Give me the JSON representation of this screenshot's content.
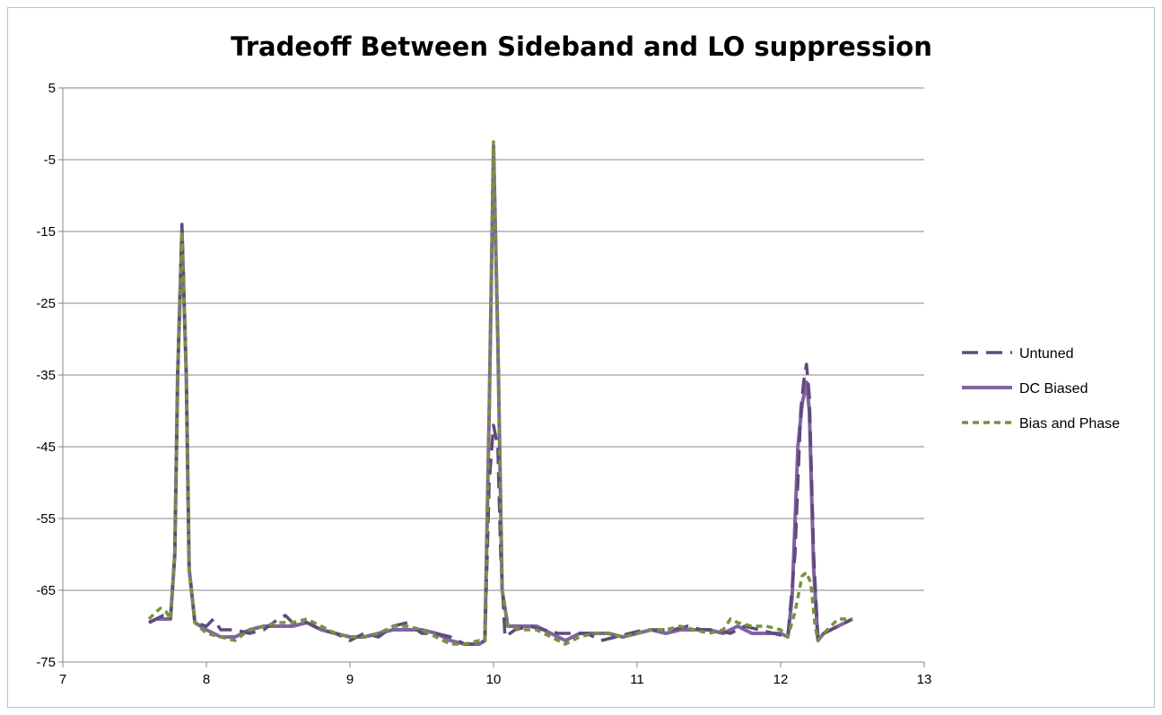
{
  "chart_data": {
    "type": "line",
    "title": "Tradeoff Between Sideband and LO suppression",
    "xlabel": "",
    "ylabel": "",
    "xlim": [
      7,
      13
    ],
    "ylim": [
      -75,
      5
    ],
    "x_ticks": [
      "7",
      "8",
      "9",
      "10",
      "11",
      "12",
      "13"
    ],
    "y_ticks": [
      "5",
      "-5",
      "-15",
      "-25",
      "-35",
      "-45",
      "-55",
      "-65",
      "-75"
    ],
    "grid": "horizontal",
    "legend_position": "right",
    "series": [
      {
        "name": "Untuned",
        "color": "#604a7b",
        "style": "long-dash",
        "points": [
          [
            7.6,
            -69.5
          ],
          [
            7.65,
            -69
          ],
          [
            7.7,
            -68.5
          ],
          [
            7.75,
            -69
          ],
          [
            7.78,
            -60
          ],
          [
            7.8,
            -35
          ],
          [
            7.83,
            -14
          ],
          [
            7.86,
            -35
          ],
          [
            7.88,
            -62
          ],
          [
            7.92,
            -69.5
          ],
          [
            8.0,
            -70
          ],
          [
            8.05,
            -69
          ],
          [
            8.1,
            -70.5
          ],
          [
            8.2,
            -70.5
          ],
          [
            8.3,
            -71
          ],
          [
            8.4,
            -70.5
          ],
          [
            8.5,
            -69
          ],
          [
            8.55,
            -68.5
          ],
          [
            8.6,
            -69.5
          ],
          [
            8.7,
            -69.5
          ],
          [
            8.8,
            -70.5
          ],
          [
            8.9,
            -71
          ],
          [
            9.0,
            -72
          ],
          [
            9.1,
            -71
          ],
          [
            9.2,
            -71.5
          ],
          [
            9.3,
            -70
          ],
          [
            9.4,
            -69.5
          ],
          [
            9.5,
            -71
          ],
          [
            9.6,
            -71
          ],
          [
            9.7,
            -71.5
          ],
          [
            9.8,
            -72.5
          ],
          [
            9.9,
            -72.5
          ],
          [
            9.94,
            -72
          ],
          [
            9.97,
            -50
          ],
          [
            10.0,
            -42
          ],
          [
            10.03,
            -45
          ],
          [
            10.05,
            -60
          ],
          [
            10.08,
            -71.5
          ],
          [
            10.15,
            -70.5
          ],
          [
            10.25,
            -70
          ],
          [
            10.35,
            -70.5
          ],
          [
            10.45,
            -71
          ],
          [
            10.55,
            -71
          ],
          [
            10.65,
            -71
          ],
          [
            10.75,
            -72
          ],
          [
            10.85,
            -71.5
          ],
          [
            10.95,
            -71
          ],
          [
            11.05,
            -70.5
          ],
          [
            11.15,
            -70.5
          ],
          [
            11.25,
            -70.5
          ],
          [
            11.35,
            -70
          ],
          [
            11.45,
            -70.5
          ],
          [
            11.55,
            -70.5
          ],
          [
            11.65,
            -71
          ],
          [
            11.75,
            -70
          ],
          [
            11.85,
            -70.5
          ],
          [
            11.95,
            -71
          ],
          [
            12.05,
            -71.5
          ],
          [
            12.1,
            -60
          ],
          [
            12.14,
            -40
          ],
          [
            12.16,
            -36
          ],
          [
            12.18,
            -33.5
          ],
          [
            12.2,
            -38
          ],
          [
            12.23,
            -60
          ],
          [
            12.26,
            -72
          ],
          [
            12.3,
            -71
          ],
          [
            12.4,
            -70
          ],
          [
            12.5,
            -69
          ]
        ]
      },
      {
        "name": "DC Biased",
        "color": "#8064a2",
        "style": "solid",
        "points": [
          [
            7.6,
            -69.5
          ],
          [
            7.65,
            -69
          ],
          [
            7.7,
            -69
          ],
          [
            7.75,
            -69
          ],
          [
            7.78,
            -60
          ],
          [
            7.8,
            -35
          ],
          [
            7.83,
            -15
          ],
          [
            7.86,
            -35
          ],
          [
            7.88,
            -62
          ],
          [
            7.92,
            -69.5
          ],
          [
            8.0,
            -70.5
          ],
          [
            8.1,
            -71.5
          ],
          [
            8.2,
            -71.5
          ],
          [
            8.3,
            -70.5
          ],
          [
            8.4,
            -70
          ],
          [
            8.5,
            -70
          ],
          [
            8.6,
            -70
          ],
          [
            8.7,
            -69.5
          ],
          [
            8.8,
            -70.5
          ],
          [
            8.9,
            -71
          ],
          [
            9.0,
            -71.5
          ],
          [
            9.1,
            -71.5
          ],
          [
            9.2,
            -71
          ],
          [
            9.3,
            -70.5
          ],
          [
            9.4,
            -70.5
          ],
          [
            9.5,
            -70.5
          ],
          [
            9.6,
            -71
          ],
          [
            9.7,
            -72
          ],
          [
            9.8,
            -72.5
          ],
          [
            9.9,
            -72.5
          ],
          [
            9.94,
            -72
          ],
          [
            9.97,
            -40
          ],
          [
            10.0,
            -3
          ],
          [
            10.03,
            -30
          ],
          [
            10.06,
            -65
          ],
          [
            10.1,
            -70
          ],
          [
            10.2,
            -70
          ],
          [
            10.3,
            -70
          ],
          [
            10.4,
            -71
          ],
          [
            10.5,
            -72
          ],
          [
            10.6,
            -71
          ],
          [
            10.7,
            -71
          ],
          [
            10.8,
            -71
          ],
          [
            10.9,
            -71.5
          ],
          [
            11.0,
            -71
          ],
          [
            11.1,
            -70.5
          ],
          [
            11.2,
            -71
          ],
          [
            11.3,
            -70.5
          ],
          [
            11.4,
            -70.5
          ],
          [
            11.5,
            -70.5
          ],
          [
            11.6,
            -71
          ],
          [
            11.7,
            -70
          ],
          [
            11.8,
            -71
          ],
          [
            11.9,
            -71
          ],
          [
            12.0,
            -71
          ],
          [
            12.05,
            -71.5
          ],
          [
            12.08,
            -66
          ],
          [
            12.12,
            -45
          ],
          [
            12.15,
            -39
          ],
          [
            12.18,
            -36
          ],
          [
            12.2,
            -40
          ],
          [
            12.23,
            -62
          ],
          [
            12.26,
            -72
          ],
          [
            12.3,
            -71
          ],
          [
            12.4,
            -70
          ],
          [
            12.5,
            -69
          ]
        ]
      },
      {
        "name": "Bias and Phase",
        "color": "#77933c",
        "style": "short-dash",
        "points": [
          [
            7.6,
            -69
          ],
          [
            7.65,
            -68
          ],
          [
            7.68,
            -67.5
          ],
          [
            7.72,
            -68
          ],
          [
            7.75,
            -69
          ],
          [
            7.78,
            -60
          ],
          [
            7.8,
            -35
          ],
          [
            7.83,
            -15
          ],
          [
            7.86,
            -35
          ],
          [
            7.88,
            -62
          ],
          [
            7.92,
            -69.5
          ],
          [
            8.0,
            -71
          ],
          [
            8.1,
            -71.5
          ],
          [
            8.2,
            -72
          ],
          [
            8.3,
            -70.5
          ],
          [
            8.4,
            -70
          ],
          [
            8.5,
            -69.5
          ],
          [
            8.6,
            -69.5
          ],
          [
            8.7,
            -69
          ],
          [
            8.8,
            -70
          ],
          [
            8.9,
            -71
          ],
          [
            9.0,
            -71.5
          ],
          [
            9.1,
            -71.5
          ],
          [
            9.2,
            -71
          ],
          [
            9.3,
            -70
          ],
          [
            9.4,
            -70
          ],
          [
            9.5,
            -70.5
          ],
          [
            9.6,
            -71.5
          ],
          [
            9.7,
            -72.5
          ],
          [
            9.8,
            -72.5
          ],
          [
            9.9,
            -72
          ],
          [
            9.94,
            -72
          ],
          [
            9.97,
            -40
          ],
          [
            10.0,
            -2.5
          ],
          [
            10.03,
            -30
          ],
          [
            10.06,
            -65
          ],
          [
            10.1,
            -70
          ],
          [
            10.2,
            -70.5
          ],
          [
            10.3,
            -70.5
          ],
          [
            10.4,
            -71.5
          ],
          [
            10.5,
            -72.5
          ],
          [
            10.6,
            -71.5
          ],
          [
            10.7,
            -71
          ],
          [
            10.8,
            -71
          ],
          [
            10.9,
            -71.5
          ],
          [
            11.0,
            -71
          ],
          [
            11.1,
            -70.5
          ],
          [
            11.2,
            -70.5
          ],
          [
            11.3,
            -70
          ],
          [
            11.4,
            -70.5
          ],
          [
            11.5,
            -71
          ],
          [
            11.6,
            -70.5
          ],
          [
            11.65,
            -69
          ],
          [
            11.7,
            -69.5
          ],
          [
            11.8,
            -70
          ],
          [
            11.9,
            -70
          ],
          [
            12.0,
            -70.5
          ],
          [
            12.05,
            -71.5
          ],
          [
            12.1,
            -68
          ],
          [
            12.15,
            -63
          ],
          [
            12.18,
            -62.5
          ],
          [
            12.21,
            -64
          ],
          [
            12.24,
            -70
          ],
          [
            12.26,
            -72
          ],
          [
            12.3,
            -71
          ],
          [
            12.4,
            -69
          ],
          [
            12.5,
            -69
          ]
        ]
      }
    ]
  }
}
